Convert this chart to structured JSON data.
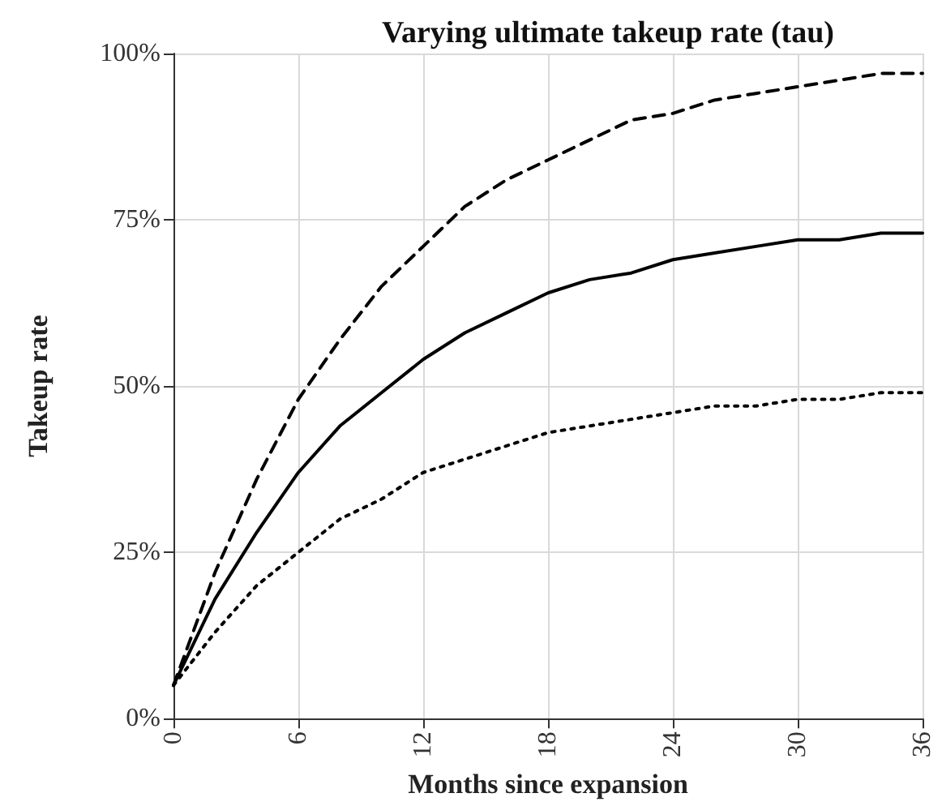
{
  "chart_data": {
    "type": "line",
    "title": "Varying ultimate takeup rate (tau)",
    "xlabel": "Months since expansion",
    "ylabel": "Takeup rate",
    "x": [
      0,
      2,
      4,
      6,
      8,
      10,
      12,
      14,
      16,
      18,
      20,
      22,
      24,
      26,
      28,
      30,
      32,
      34,
      36
    ],
    "series": [
      {
        "color": "#000000",
        "line_style": "dashed",
        "values": [
          5,
          22,
          36,
          48,
          57,
          65,
          71,
          77,
          81,
          84,
          87,
          90,
          91,
          93,
          94,
          95,
          96,
          97,
          97
        ]
      },
      {
        "color": "#000000",
        "line_style": "solid",
        "values": [
          5,
          18,
          28,
          37,
          44,
          49,
          54,
          58,
          61,
          64,
          66,
          67,
          69,
          70,
          71,
          72,
          72,
          73,
          73
        ]
      },
      {
        "color": "#000000",
        "line_style": "dotted",
        "values": [
          5,
          13,
          20,
          25,
          30,
          33,
          37,
          39,
          41,
          43,
          44,
          45,
          46,
          47,
          47,
          48,
          48,
          49,
          49
        ]
      }
    ],
    "xlim": [
      0,
      36
    ],
    "xticks": [
      0,
      6,
      12,
      18,
      24,
      30,
      36
    ],
    "ylim": [
      0,
      100
    ],
    "yticks": [
      {
        "value": 0,
        "label": "0%"
      },
      {
        "value": 25,
        "label": "25%"
      },
      {
        "value": 50,
        "label": "50%"
      },
      {
        "value": 75,
        "label": "75%"
      },
      {
        "value": 100,
        "label": "100%"
      }
    ],
    "grid": true,
    "marker": "none"
  }
}
